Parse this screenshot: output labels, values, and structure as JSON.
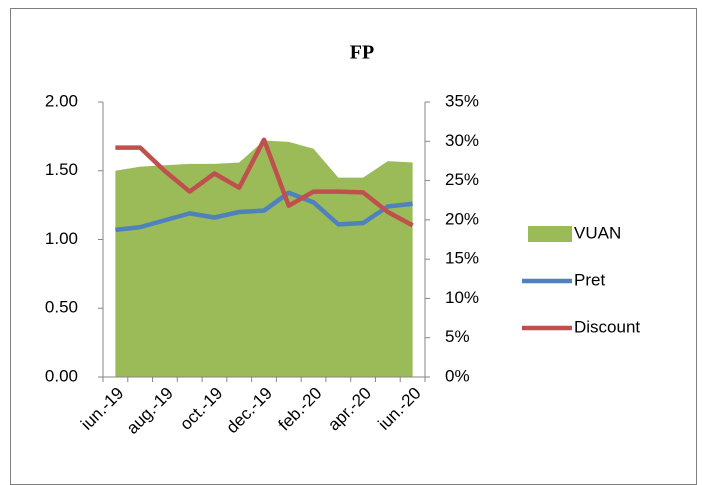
{
  "chart_data": {
    "type": "area-line",
    "title": "FP",
    "categories": [
      "iun.-19",
      null,
      "aug.-19",
      null,
      "oct.-19",
      null,
      "dec.-19",
      null,
      "feb.-20",
      null,
      "apr.-20",
      null,
      "iun.-20"
    ],
    "series": [
      {
        "name": "VUAN",
        "kind": "area",
        "color": "#9bbb59",
        "values": [
          1.5,
          1.53,
          1.54,
          1.55,
          1.55,
          1.56,
          1.72,
          1.71,
          1.66,
          1.45,
          1.45,
          1.57,
          1.56
        ]
      },
      {
        "name": "Pret",
        "kind": "line",
        "color": "#4f81bd",
        "values": [
          1.07,
          1.09,
          1.14,
          1.19,
          1.16,
          1.2,
          1.21,
          1.34,
          1.27,
          1.11,
          1.12,
          1.24,
          1.26
        ]
      },
      {
        "name": "Discount",
        "kind": "line",
        "axis": "y2",
        "color": "#c0504d",
        "values": [
          29.2,
          29.2,
          26.2,
          23.6,
          25.9,
          24.1,
          30.2,
          21.8,
          23.6,
          23.6,
          23.5,
          21.0,
          19.3
        ]
      }
    ],
    "ylim": [
      0,
      2
    ],
    "yticks": [
      {
        "value": 0,
        "label": "0.00"
      },
      {
        "value": 0.5,
        "label": "0.50"
      },
      {
        "value": 1,
        "label": "1.00"
      },
      {
        "value": 1.5,
        "label": "1.50"
      },
      {
        "value": 2,
        "label": "2.00"
      }
    ],
    "y2lim": [
      0,
      35
    ],
    "y2ticks": [
      {
        "value": 0,
        "label": "0%"
      },
      {
        "value": 5,
        "label": "5%"
      },
      {
        "value": 10,
        "label": "10%"
      },
      {
        "value": 15,
        "label": "15%"
      },
      {
        "value": 20,
        "label": "20%"
      },
      {
        "value": 25,
        "label": "25%"
      },
      {
        "value": 30,
        "label": "30%"
      },
      {
        "value": 35,
        "label": "35%"
      }
    ],
    "legend": "right"
  }
}
